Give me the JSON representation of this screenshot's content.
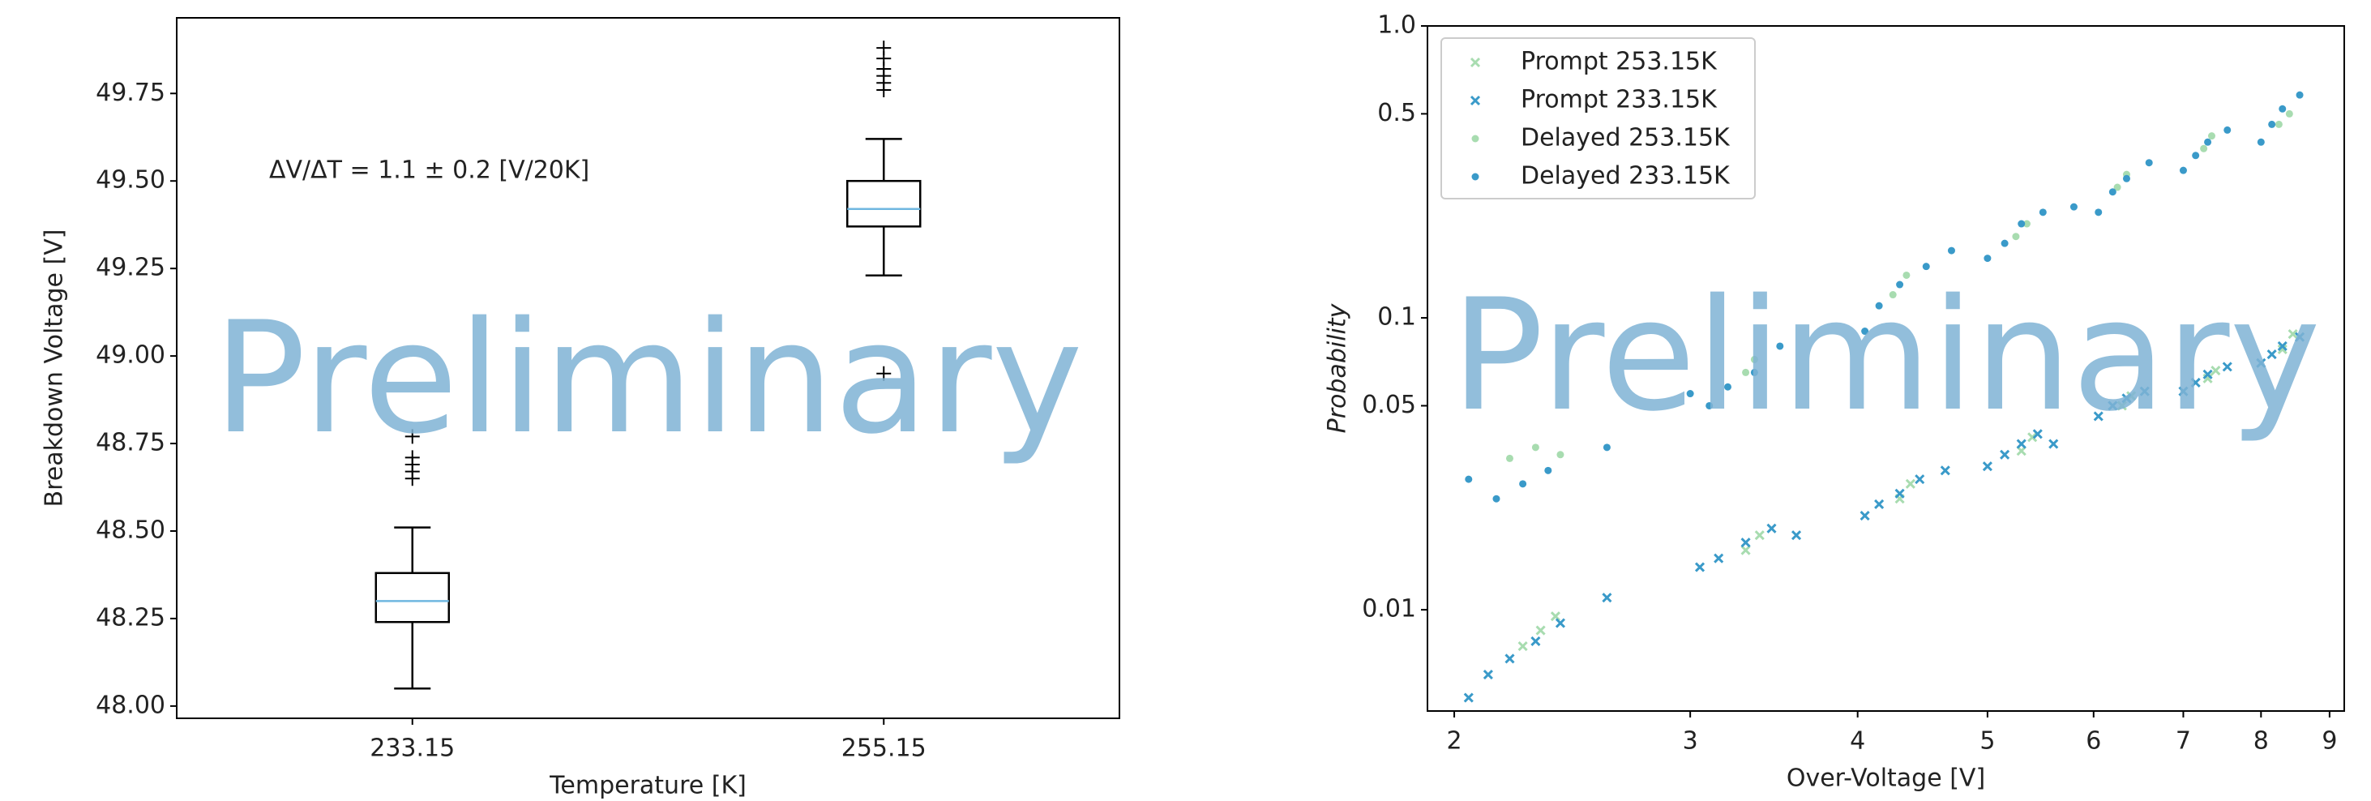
{
  "chart_data": [
    {
      "type": "box",
      "ylabel": "Breakdown Voltage [V]",
      "xlabel": "Temperature [K]",
      "annotation": "ΔV/ΔT = 1.1 ± 0.2 [V/20K]",
      "watermark": "Preliminary",
      "categories": [
        "233.15",
        "255.15"
      ],
      "boxes": [
        {
          "low": 48.05,
          "q1": 48.24,
          "median": 48.3,
          "q3": 48.38,
          "high": 48.51,
          "outliers": [
            48.65,
            48.67,
            48.69,
            48.71,
            48.77
          ]
        },
        {
          "low": 49.23,
          "q1": 49.37,
          "median": 49.42,
          "q3": 49.5,
          "high": 49.62,
          "outliers": [
            48.95,
            49.76,
            49.78,
            49.8,
            49.82,
            49.85,
            49.88
          ]
        }
      ],
      "box_color": "#000000",
      "median_color": "#6fb7e0",
      "ylim": [
        47.965,
        49.966
      ],
      "yticks": [
        {
          "value": 48,
          "label": "48.00"
        },
        {
          "value": 48.25,
          "label": "48.25"
        },
        {
          "value": 48.5,
          "label": "48.50"
        },
        {
          "value": 48.75,
          "label": "48.75"
        },
        {
          "value": 49,
          "label": "49.00"
        },
        {
          "value": 49.25,
          "label": "49.25"
        },
        {
          "value": 49.5,
          "label": "49.50"
        },
        {
          "value": 49.75,
          "label": "49.75"
        }
      ]
    },
    {
      "type": "scatter",
      "ylabel": "Probability",
      "xlabel": "Over-Voltage [V]",
      "watermark": "Preliminary",
      "xscale": "log",
      "yscale": "log",
      "legend": "upper left",
      "xlim": [
        1.91,
        9.23
      ],
      "xticks": [
        2,
        3,
        4,
        5,
        6,
        7,
        8,
        9
      ],
      "ylim": [
        0.0045,
        1.0
      ],
      "yticks": [
        0.01,
        0.05,
        0.1,
        0.5,
        {
          "value": 1,
          "label": "1.0"
        }
      ],
      "series": [
        {
          "name": "Prompt 253.15K",
          "color": "#a8dcb0",
          "marker": "x",
          "x": [
            2.25,
            2.32,
            2.38,
            3.3,
            3.38,
            4.3,
            4.38,
            5.3,
            5.4,
            6.3,
            6.4,
            7.3,
            7.4,
            8.3,
            8.45
          ],
          "y": [
            0.0075,
            0.0085,
            0.0095,
            0.016,
            0.018,
            0.024,
            0.027,
            0.035,
            0.039,
            0.05,
            0.054,
            0.062,
            0.066,
            0.078,
            0.088
          ]
        },
        {
          "name": "Prompt 233.15K",
          "color": "#3a9ac9",
          "marker": "x",
          "x": [
            2.05,
            2.12,
            2.2,
            2.3,
            2.4,
            2.6,
            3.05,
            3.15,
            3.3,
            3.45,
            3.6,
            4.05,
            4.15,
            4.3,
            4.45,
            4.65,
            5.0,
            5.15,
            5.3,
            5.45,
            5.6,
            6.05,
            6.2,
            6.35,
            6.55,
            7.0,
            7.15,
            7.3,
            7.55,
            8.0,
            8.15,
            8.3,
            8.55
          ],
          "y": [
            0.005,
            0.006,
            0.0068,
            0.0078,
            0.009,
            0.011,
            0.014,
            0.015,
            0.017,
            0.019,
            0.018,
            0.021,
            0.023,
            0.025,
            0.028,
            0.03,
            0.031,
            0.034,
            0.037,
            0.04,
            0.037,
            0.046,
            0.05,
            0.053,
            0.056,
            0.056,
            0.06,
            0.064,
            0.068,
            0.07,
            0.075,
            0.08,
            0.086
          ]
        },
        {
          "name": "Delayed 253.15K",
          "color": "#a8dcb0",
          "marker": "dot",
          "x": [
            2.2,
            2.3,
            2.4,
            3.3,
            3.35,
            4.25,
            4.35,
            5.25,
            5.35,
            6.25,
            6.35,
            7.25,
            7.35,
            8.25,
            8.4
          ],
          "y": [
            0.033,
            0.036,
            0.034,
            0.065,
            0.072,
            0.12,
            0.14,
            0.19,
            0.21,
            0.28,
            0.31,
            0.38,
            0.42,
            0.46,
            0.5
          ]
        },
        {
          "name": "Delayed 233.15K",
          "color": "#3a9ac9",
          "marker": "dot",
          "x": [
            2.05,
            2.15,
            2.25,
            2.35,
            2.6,
            3.0,
            3.1,
            3.2,
            3.35,
            3.5,
            4.05,
            4.15,
            4.3,
            4.5,
            4.7,
            5.0,
            5.15,
            5.3,
            5.5,
            5.8,
            6.05,
            6.2,
            6.35,
            6.6,
            7.0,
            7.15,
            7.3,
            7.55,
            8.0,
            8.15,
            8.3,
            8.55
          ],
          "y": [
            0.028,
            0.024,
            0.027,
            0.03,
            0.036,
            0.055,
            0.05,
            0.058,
            0.065,
            0.08,
            0.09,
            0.11,
            0.13,
            0.15,
            0.17,
            0.16,
            0.18,
            0.21,
            0.23,
            0.24,
            0.23,
            0.27,
            0.3,
            0.34,
            0.32,
            0.36,
            0.4,
            0.44,
            0.4,
            0.46,
            0.52,
            0.58
          ]
        }
      ]
    }
  ]
}
